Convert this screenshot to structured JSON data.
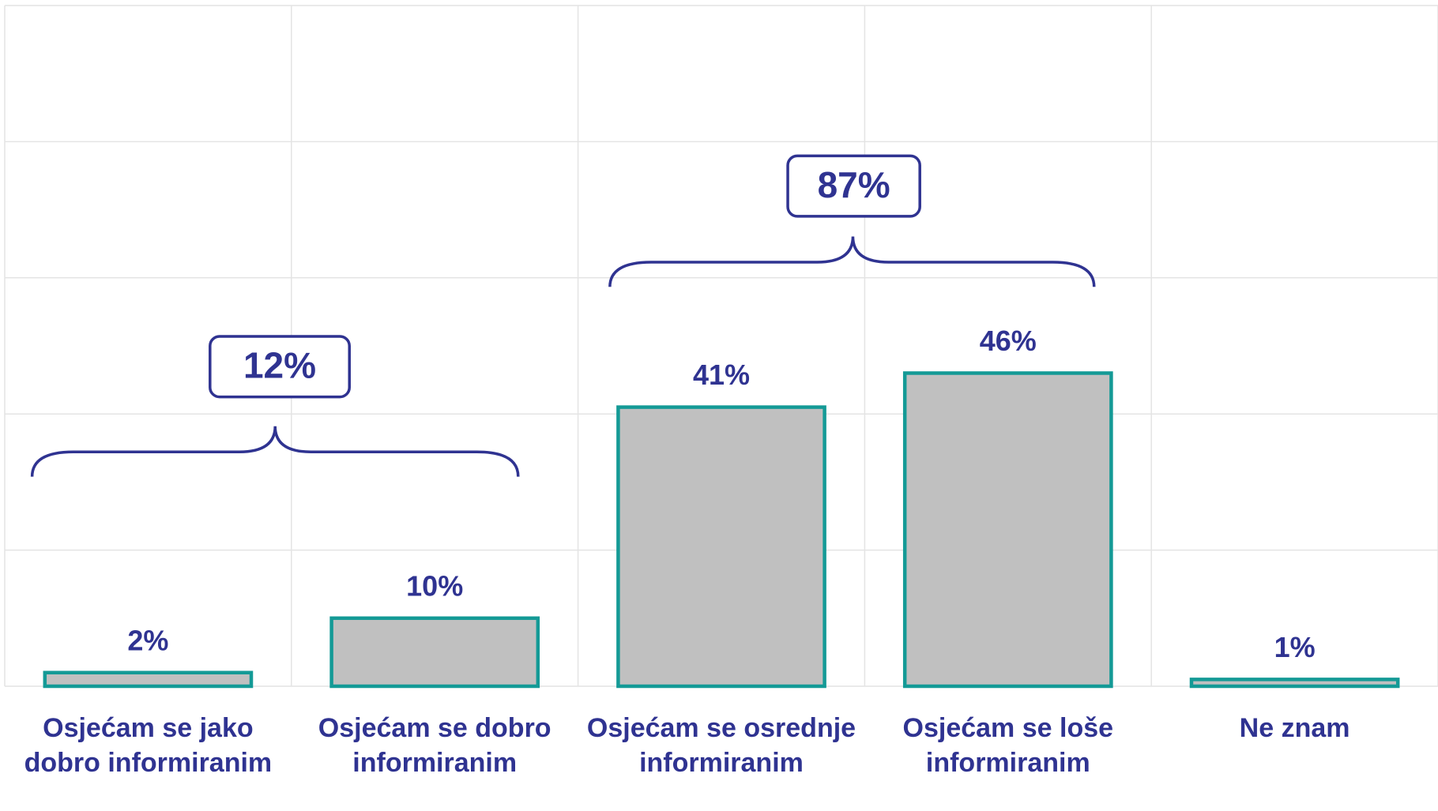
{
  "chart_data": {
    "type": "bar",
    "categories": [
      "Osjećam se jako dobro informiranim",
      "Osjećam se dobro informiranim",
      "Osjećam se osrednje informiranim",
      "Osjećam se loše informiranim",
      "Ne znam"
    ],
    "values": [
      2,
      10,
      41,
      46,
      1
    ],
    "value_labels": [
      "2%",
      "10%",
      "41%",
      "46%",
      "1%"
    ],
    "color": "#c0c0c0",
    "edge_color": "#149a96",
    "ylim": [
      0,
      100
    ],
    "yticks": [
      0,
      20,
      40,
      60,
      80,
      100
    ],
    "grid": true,
    "annotations": [
      {
        "text": "12%"
      },
      {
        "text": "87%"
      }
    ]
  }
}
